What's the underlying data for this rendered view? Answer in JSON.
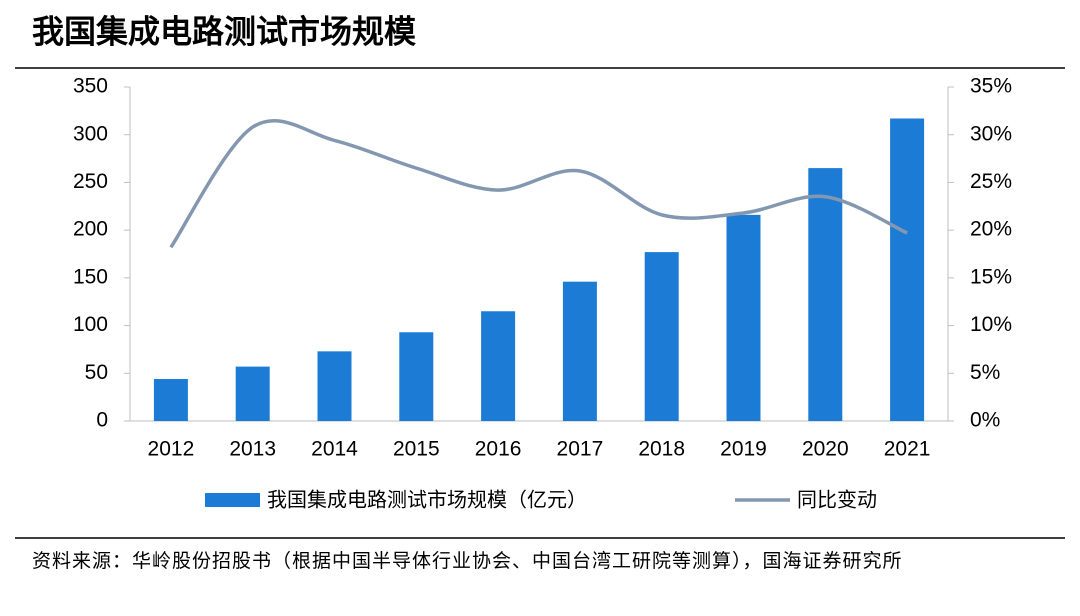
{
  "title": "我国集成电路测试市场规模",
  "source": "资料来源：华岭股份招股书（根据中国半导体行业协会、中国台湾工研院等测算），国海证券研究所",
  "chart_data": {
    "type": "bar-line",
    "categories": [
      "2012",
      "2013",
      "2014",
      "2015",
      "2016",
      "2017",
      "2018",
      "2019",
      "2020",
      "2021"
    ],
    "series": [
      {
        "name": "我国集成电路测试市场规模（亿元）",
        "type": "bar",
        "color": "#1c7cd5",
        "values": [
          44,
          57,
          73,
          93,
          115,
          146,
          177,
          216,
          265,
          317
        ]
      },
      {
        "name": "同比变动",
        "type": "line",
        "axis": "y2",
        "color": "#8497b0",
        "values": [
          18.2,
          30.8,
          29.4,
          26.5,
          24.2,
          26.2,
          21.6,
          21.8,
          23.5,
          19.7
        ]
      }
    ],
    "ylim": [
      0,
      350
    ],
    "yticks": [
      0,
      50,
      100,
      150,
      200,
      250,
      300,
      350
    ],
    "y2lim": [
      0,
      35
    ],
    "y2ticks": [
      {
        "value": 0,
        "label": "0%"
      },
      {
        "value": 5,
        "label": "5%"
      },
      {
        "value": 10,
        "label": "10%"
      },
      {
        "value": 15,
        "label": "15%"
      },
      {
        "value": 20,
        "label": "20%"
      },
      {
        "value": 25,
        "label": "25%"
      },
      {
        "value": 30,
        "label": "30%"
      },
      {
        "value": 35,
        "label": "35%"
      }
    ]
  }
}
